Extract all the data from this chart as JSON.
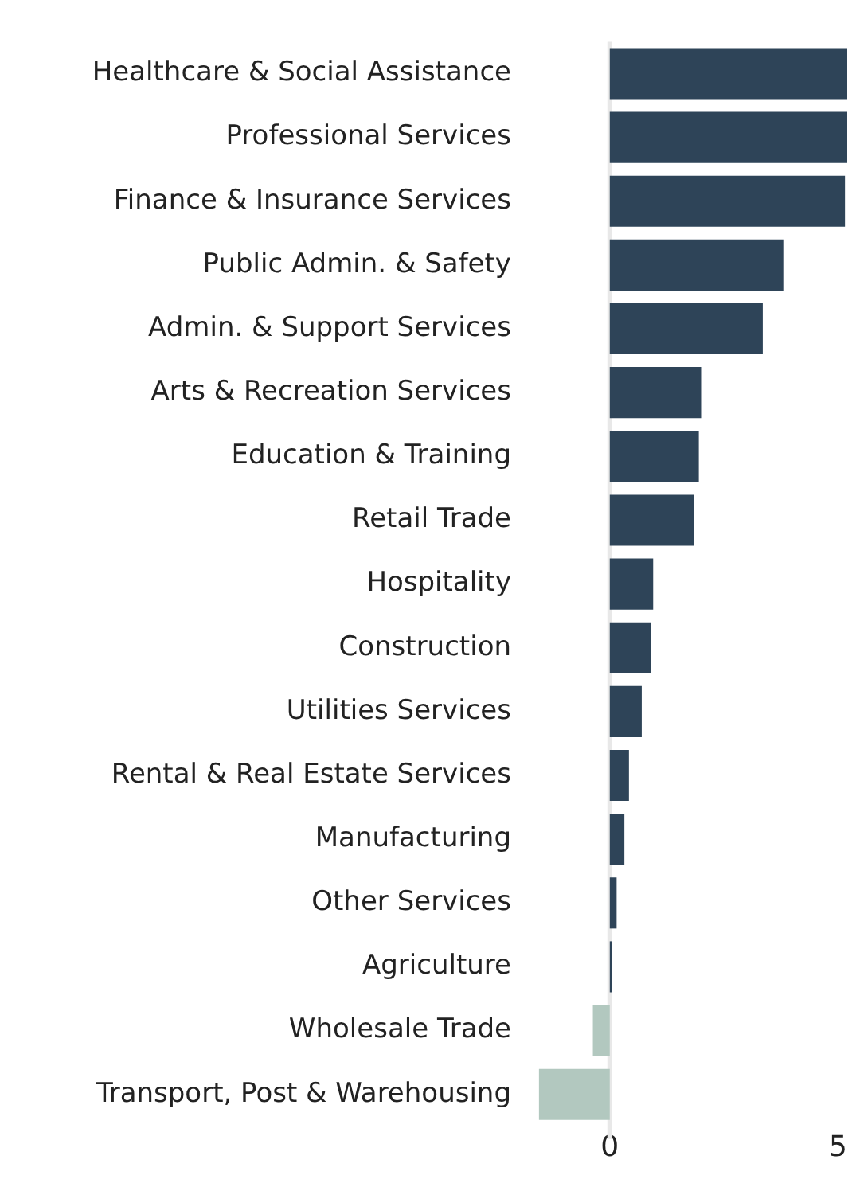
{
  "chart_data": {
    "type": "bar",
    "orientation": "horizontal",
    "categories": [
      "Healthcare & Social Assistance",
      "Professional Services",
      "Finance & Insurance Services",
      "Public Admin. & Safety",
      "Admin. & Support Services",
      "Arts & Recreation Services",
      "Education & Training",
      "Retail Trade",
      "Hospitality",
      "Construction",
      "Utilities Services",
      "Rental & Real Estate Services",
      "Manufacturing",
      "Other Services",
      "Agriculture",
      "Wholesale Trade",
      "Transport, Post & Warehousing"
    ],
    "values": [
      5.2,
      5.2,
      5.15,
      3.8,
      3.35,
      2.0,
      1.95,
      1.85,
      0.95,
      0.9,
      0.7,
      0.42,
      0.32,
      0.15,
      0.05,
      -0.37,
      -1.55
    ],
    "colors": [
      "#2e4458",
      "#2e4458",
      "#2e4458",
      "#2e4458",
      "#2e4458",
      "#2e4458",
      "#2e4458",
      "#2e4458",
      "#2e4458",
      "#2e4458",
      "#2e4458",
      "#2e4458",
      "#2e4458",
      "#2e4458",
      "#2e4458",
      "#b2c8bf",
      "#b2c8bf"
    ],
    "xlim": [
      -1.6,
      5.2
    ],
    "xticks": [
      0,
      5
    ],
    "grid": false,
    "legend": false,
    "ref_lines": [
      {
        "axis": "x",
        "value": 0,
        "color": "#e8e8e8"
      }
    ]
  }
}
